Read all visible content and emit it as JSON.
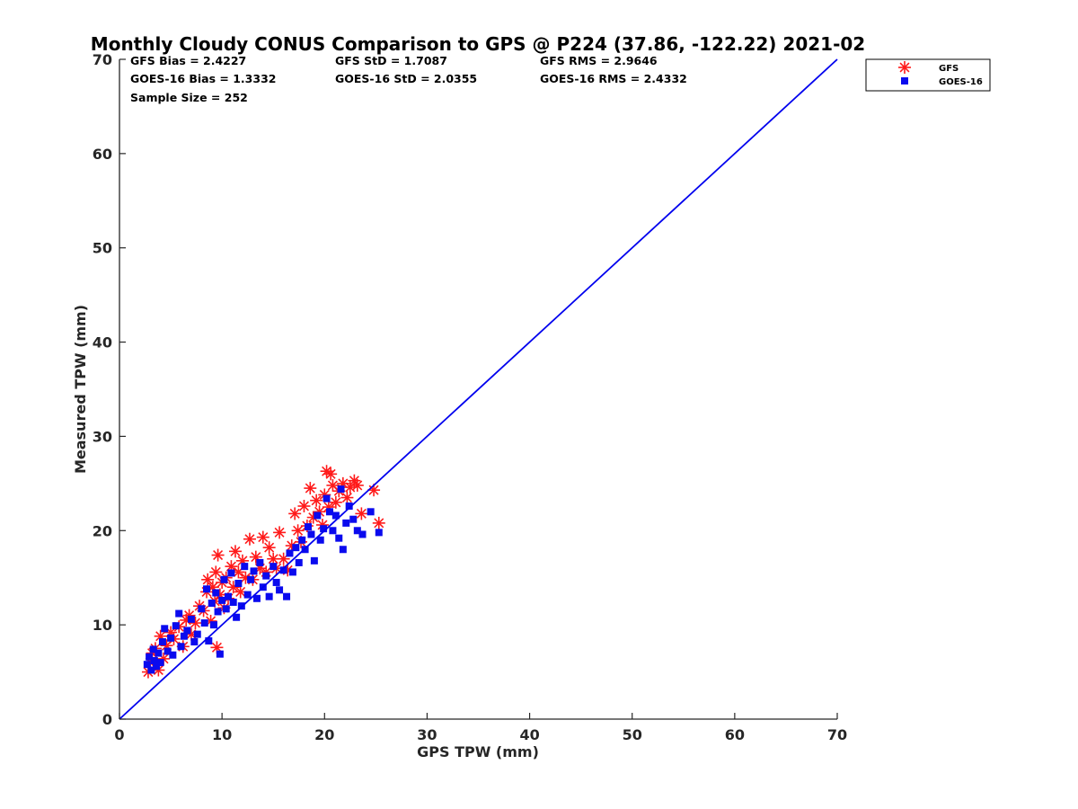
{
  "chart_data": {
    "type": "scatter",
    "title": "Monthly Cloudy CONUS Comparison to GPS @ P224 (37.86, -122.22) 2021-02",
    "xlabel": "GPS TPW (mm)",
    "ylabel": "Measured TPW (mm)",
    "xlim": [
      0,
      70
    ],
    "ylim": [
      0,
      70
    ],
    "xticks": [
      "0",
      "10",
      "20",
      "30",
      "40",
      "50",
      "60",
      "70"
    ],
    "yticks": [
      "0",
      "10",
      "20",
      "30",
      "40",
      "50",
      "60",
      "70"
    ],
    "grid": false,
    "legend_position": "top-right",
    "stats": [
      [
        "GFS Bias = 2.4227",
        "GFS StD = 1.7087",
        "GFS RMS = 2.9646"
      ],
      [
        "GOES-16 Bias = 1.3332",
        "GOES-16 StD = 2.0355",
        "GOES-16 RMS = 2.4332"
      ],
      [
        "Sample Size = 252",
        "",
        ""
      ]
    ],
    "reference_line": {
      "x": [
        0,
        70
      ],
      "y": [
        0,
        70
      ],
      "color": "#0000ee"
    },
    "series": [
      {
        "name": "GFS",
        "marker": "asterisk",
        "color": "#ff1a1a",
        "points": [
          [
            2.8,
            5.0
          ],
          [
            3.0,
            6.0
          ],
          [
            3.2,
            7.0
          ],
          [
            3.5,
            7.5
          ],
          [
            3.8,
            5.2
          ],
          [
            4.0,
            8.8
          ],
          [
            4.3,
            6.4
          ],
          [
            4.6,
            7.8
          ],
          [
            5.0,
            9.2
          ],
          [
            5.3,
            8.5
          ],
          [
            5.8,
            9.8
          ],
          [
            6.2,
            7.7
          ],
          [
            6.5,
            10.5
          ],
          [
            6.8,
            11.0
          ],
          [
            7.0,
            9.0
          ],
          [
            7.4,
            10.2
          ],
          [
            7.8,
            12.0
          ],
          [
            8.2,
            11.5
          ],
          [
            8.5,
            13.5
          ],
          [
            8.6,
            14.8
          ],
          [
            8.9,
            10.4
          ],
          [
            9.1,
            14.0
          ],
          [
            9.3,
            12.5
          ],
          [
            9.4,
            15.6
          ],
          [
            9.5,
            7.6
          ],
          [
            9.6,
            17.4
          ],
          [
            9.8,
            13.2
          ],
          [
            10.0,
            14.5
          ],
          [
            10.2,
            11.8
          ],
          [
            10.4,
            15.0
          ],
          [
            10.6,
            12.8
          ],
          [
            10.9,
            16.2
          ],
          [
            11.1,
            14.0
          ],
          [
            11.3,
            17.8
          ],
          [
            11.6,
            15.6
          ],
          [
            11.8,
            13.5
          ],
          [
            12.0,
            16.8
          ],
          [
            12.3,
            15.0
          ],
          [
            12.7,
            19.1
          ],
          [
            13.0,
            14.8
          ],
          [
            13.3,
            17.2
          ],
          [
            13.7,
            16.0
          ],
          [
            14.0,
            19.3
          ],
          [
            14.3,
            15.6
          ],
          [
            14.6,
            18.2
          ],
          [
            15.0,
            17.0
          ],
          [
            15.3,
            16.0
          ],
          [
            15.6,
            19.8
          ],
          [
            16.0,
            17.0
          ],
          [
            16.4,
            15.8
          ],
          [
            16.8,
            18.4
          ],
          [
            17.1,
            21.8
          ],
          [
            17.4,
            20.0
          ],
          [
            17.7,
            18.8
          ],
          [
            18.0,
            22.6
          ],
          [
            18.3,
            20.5
          ],
          [
            18.6,
            24.5
          ],
          [
            18.9,
            21.4
          ],
          [
            19.2,
            23.2
          ],
          [
            19.5,
            22.0
          ],
          [
            19.8,
            20.6
          ],
          [
            20.0,
            23.8
          ],
          [
            20.2,
            26.3
          ],
          [
            20.4,
            22.5
          ],
          [
            20.6,
            26.0
          ],
          [
            20.8,
            24.8
          ],
          [
            21.1,
            23.0
          ],
          [
            21.4,
            24.2
          ],
          [
            21.8,
            25.0
          ],
          [
            22.2,
            23.5
          ],
          [
            22.5,
            24.6
          ],
          [
            22.9,
            25.3
          ],
          [
            23.2,
            24.8
          ],
          [
            23.6,
            21.8
          ],
          [
            24.8,
            24.3
          ],
          [
            25.3,
            20.8
          ]
        ]
      },
      {
        "name": "GOES-16",
        "marker": "square",
        "color": "#0a0aee",
        "points": [
          [
            2.7,
            5.8
          ],
          [
            2.9,
            6.6
          ],
          [
            3.1,
            5.2
          ],
          [
            3.3,
            7.4
          ],
          [
            3.4,
            6.2
          ],
          [
            3.6,
            5.6
          ],
          [
            3.8,
            7.0
          ],
          [
            4.0,
            6.0
          ],
          [
            4.2,
            8.2
          ],
          [
            4.4,
            9.6
          ],
          [
            4.7,
            7.2
          ],
          [
            5.0,
            8.6
          ],
          [
            5.2,
            6.8
          ],
          [
            5.5,
            9.9
          ],
          [
            5.8,
            11.2
          ],
          [
            6.0,
            7.7
          ],
          [
            6.3,
            8.8
          ],
          [
            6.6,
            9.4
          ],
          [
            7.0,
            10.6
          ],
          [
            7.3,
            8.2
          ],
          [
            7.6,
            9.0
          ],
          [
            8.0,
            11.7
          ],
          [
            8.3,
            10.2
          ],
          [
            8.5,
            13.8
          ],
          [
            8.7,
            8.3
          ],
          [
            9.0,
            12.3
          ],
          [
            9.2,
            10.0
          ],
          [
            9.4,
            13.4
          ],
          [
            9.6,
            11.4
          ],
          [
            9.8,
            6.9
          ],
          [
            10.0,
            12.6
          ],
          [
            10.2,
            14.8
          ],
          [
            10.4,
            11.7
          ],
          [
            10.6,
            13.0
          ],
          [
            10.9,
            15.5
          ],
          [
            11.1,
            12.4
          ],
          [
            11.4,
            10.8
          ],
          [
            11.6,
            14.4
          ],
          [
            11.9,
            12.0
          ],
          [
            12.2,
            16.2
          ],
          [
            12.5,
            13.2
          ],
          [
            12.8,
            14.8
          ],
          [
            13.1,
            15.7
          ],
          [
            13.4,
            12.8
          ],
          [
            13.7,
            16.6
          ],
          [
            14.0,
            14.0
          ],
          [
            14.3,
            15.2
          ],
          [
            14.6,
            13.0
          ],
          [
            15.0,
            16.2
          ],
          [
            15.3,
            14.5
          ],
          [
            15.6,
            13.7
          ],
          [
            16.0,
            15.8
          ],
          [
            16.3,
            13.0
          ],
          [
            16.6,
            17.6
          ],
          [
            16.9,
            15.6
          ],
          [
            17.2,
            18.2
          ],
          [
            17.5,
            16.6
          ],
          [
            17.8,
            19.0
          ],
          [
            18.1,
            18.0
          ],
          [
            18.4,
            20.4
          ],
          [
            18.7,
            19.6
          ],
          [
            19.0,
            16.8
          ],
          [
            19.3,
            21.6
          ],
          [
            19.6,
            19.0
          ],
          [
            19.9,
            20.2
          ],
          [
            20.2,
            23.4
          ],
          [
            20.5,
            22.0
          ],
          [
            20.8,
            20.0
          ],
          [
            21.1,
            21.6
          ],
          [
            21.4,
            19.2
          ],
          [
            21.6,
            24.4
          ],
          [
            21.8,
            18.0
          ],
          [
            22.1,
            20.8
          ],
          [
            22.4,
            22.6
          ],
          [
            22.8,
            21.2
          ],
          [
            23.2,
            20.0
          ],
          [
            23.7,
            19.6
          ],
          [
            24.5,
            22.0
          ],
          [
            25.3,
            19.8
          ]
        ]
      }
    ]
  }
}
